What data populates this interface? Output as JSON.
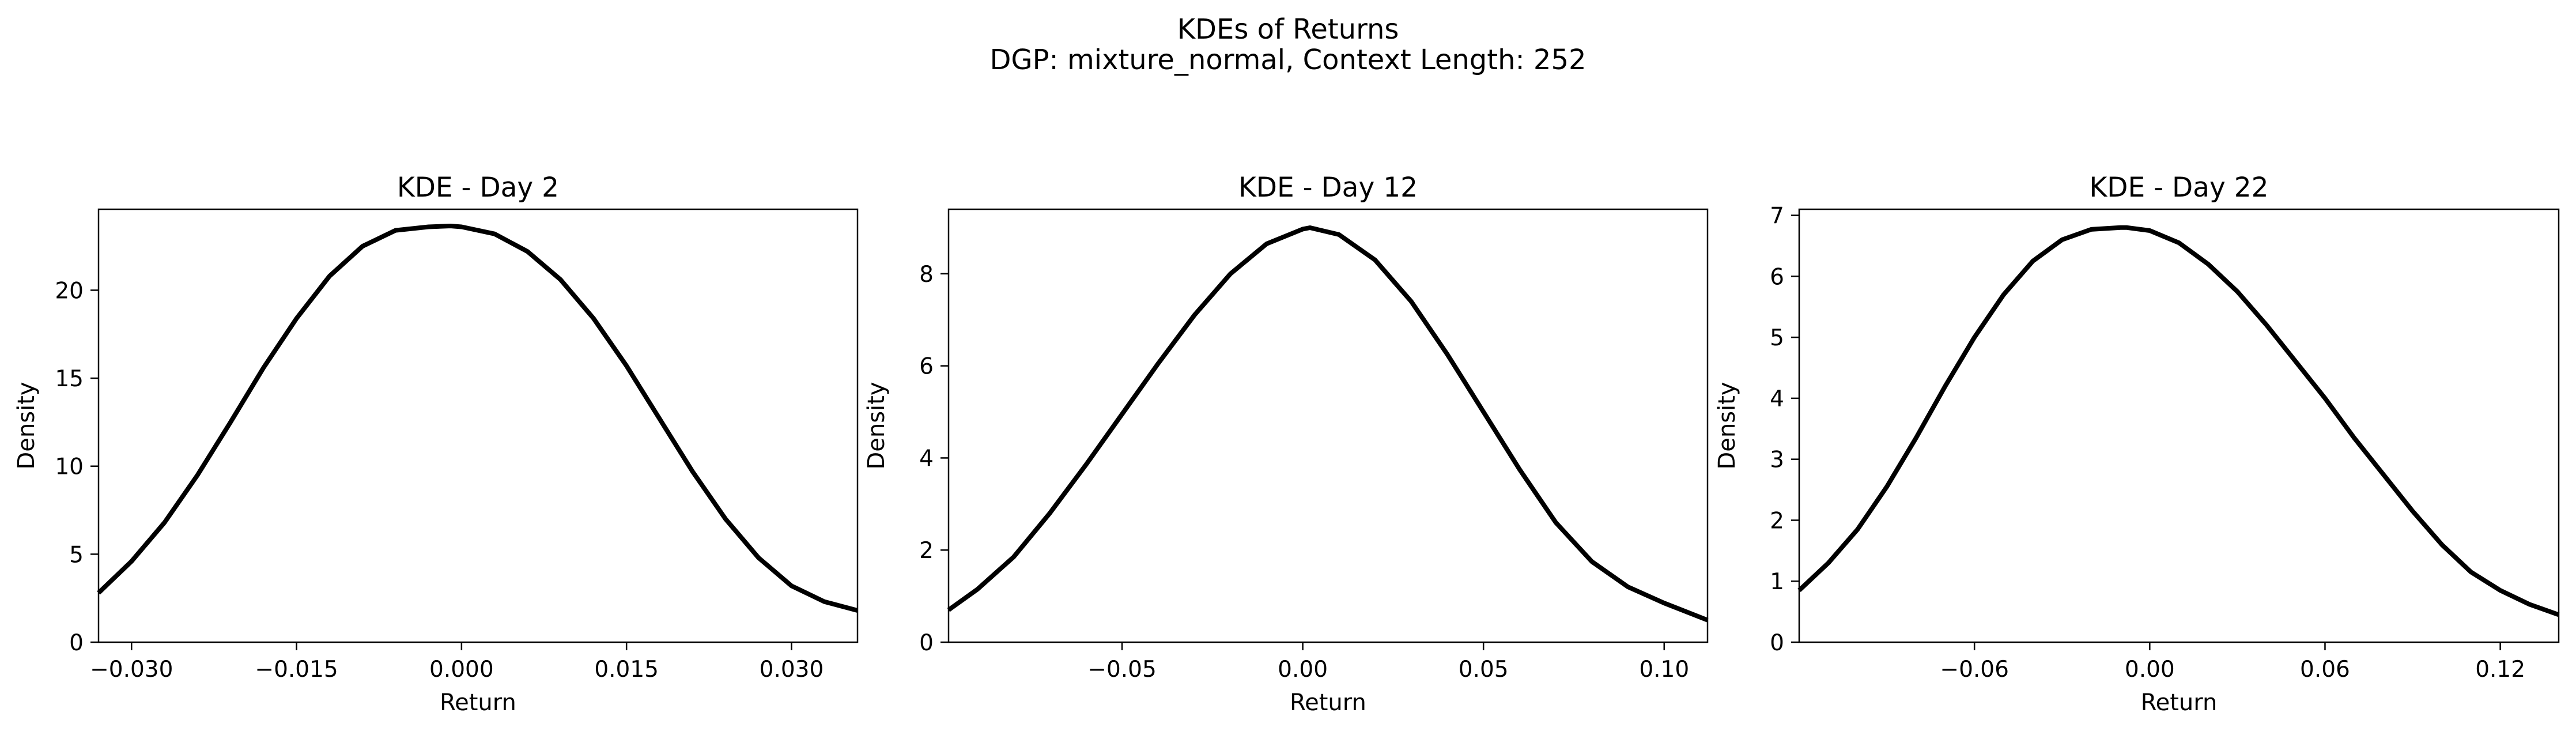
{
  "figure": {
    "title_line1": "KDEs of Returns",
    "title_line2": "DGP: mixture_normal, Context Length: 252"
  },
  "chart_data": [
    {
      "type": "line",
      "title": "KDE - Day 2",
      "xlabel": "Return",
      "ylabel": "Density",
      "xlim": [
        -0.033,
        0.036
      ],
      "ylim": [
        0,
        24.6
      ],
      "xticks": [
        -0.03,
        -0.015,
        0.0,
        0.015,
        0.03
      ],
      "xtick_labels": [
        "−0.030",
        "−0.015",
        "0.000",
        "0.015",
        "0.030"
      ],
      "yticks": [
        0,
        5,
        10,
        15,
        20
      ],
      "ytick_labels": [
        "0",
        "5",
        "10",
        "15",
        "20"
      ],
      "line_color": "#000000",
      "series": [
        {
          "x": [
            -0.033,
            -0.03,
            -0.027,
            -0.024,
            -0.021,
            -0.018,
            -0.015,
            -0.012,
            -0.009,
            -0.006,
            -0.003,
            -0.001,
            0.0,
            0.003,
            0.006,
            0.009,
            0.012,
            0.015,
            0.018,
            0.021,
            0.024,
            0.027,
            0.03,
            0.033,
            0.036
          ],
          "y": [
            2.8,
            4.6,
            6.8,
            9.5,
            12.5,
            15.6,
            18.4,
            20.8,
            22.5,
            23.4,
            23.6,
            23.65,
            23.6,
            23.2,
            22.2,
            20.6,
            18.4,
            15.7,
            12.7,
            9.7,
            7.0,
            4.8,
            3.2,
            2.3,
            1.8
          ]
        }
      ]
    },
    {
      "type": "line",
      "title": "KDE - Day 12",
      "xlabel": "Return",
      "ylabel": "Density",
      "xlim": [
        -0.098,
        0.112
      ],
      "ylim": [
        0,
        9.4
      ],
      "xticks": [
        -0.05,
        0.0,
        0.05,
        0.1
      ],
      "xtick_labels": [
        "−0.05",
        "0.00",
        "0.05",
        "0.10"
      ],
      "yticks": [
        0,
        2,
        4,
        6,
        8
      ],
      "ytick_labels": [
        "0",
        "2",
        "4",
        "6",
        "8"
      ],
      "line_color": "#000000",
      "series": [
        {
          "x": [
            -0.098,
            -0.09,
            -0.08,
            -0.07,
            -0.06,
            -0.05,
            -0.04,
            -0.03,
            -0.02,
            -0.01,
            0.0,
            0.002,
            0.01,
            0.02,
            0.03,
            0.04,
            0.05,
            0.06,
            0.07,
            0.08,
            0.09,
            0.1,
            0.112
          ],
          "y": [
            0.7,
            1.15,
            1.85,
            2.8,
            3.85,
            4.95,
            6.05,
            7.1,
            8.0,
            8.65,
            8.97,
            9.0,
            8.85,
            8.3,
            7.4,
            6.25,
            5.0,
            3.75,
            2.6,
            1.75,
            1.2,
            0.85,
            0.48
          ]
        }
      ]
    },
    {
      "type": "line",
      "title": "KDE - Day 22",
      "xlabel": "Return",
      "ylabel": "Density",
      "xlim": [
        -0.12,
        0.14
      ],
      "ylim": [
        0,
        7.1
      ],
      "xticks": [
        -0.06,
        0.0,
        0.06,
        0.12
      ],
      "xtick_labels": [
        "−0.06",
        "0.00",
        "0.06",
        "0.12"
      ],
      "yticks": [
        0,
        1,
        2,
        3,
        4,
        5,
        6,
        7
      ],
      "ytick_labels": [
        "0",
        "1",
        "2",
        "3",
        "4",
        "5",
        "6",
        "7"
      ],
      "line_color": "#000000",
      "series": [
        {
          "x": [
            -0.12,
            -0.11,
            -0.1,
            -0.09,
            -0.08,
            -0.07,
            -0.06,
            -0.05,
            -0.04,
            -0.03,
            -0.02,
            -0.01,
            -0.008,
            0.0,
            0.01,
            0.02,
            0.03,
            0.04,
            0.05,
            0.06,
            0.07,
            0.08,
            0.09,
            0.1,
            0.11,
            0.12,
            0.13,
            0.14
          ],
          "y": [
            0.85,
            1.3,
            1.85,
            2.55,
            3.35,
            4.2,
            5.0,
            5.7,
            6.25,
            6.6,
            6.77,
            6.8,
            6.8,
            6.75,
            6.55,
            6.2,
            5.75,
            5.2,
            4.6,
            4.0,
            3.35,
            2.75,
            2.15,
            1.6,
            1.15,
            0.85,
            0.62,
            0.45
          ]
        }
      ]
    }
  ]
}
